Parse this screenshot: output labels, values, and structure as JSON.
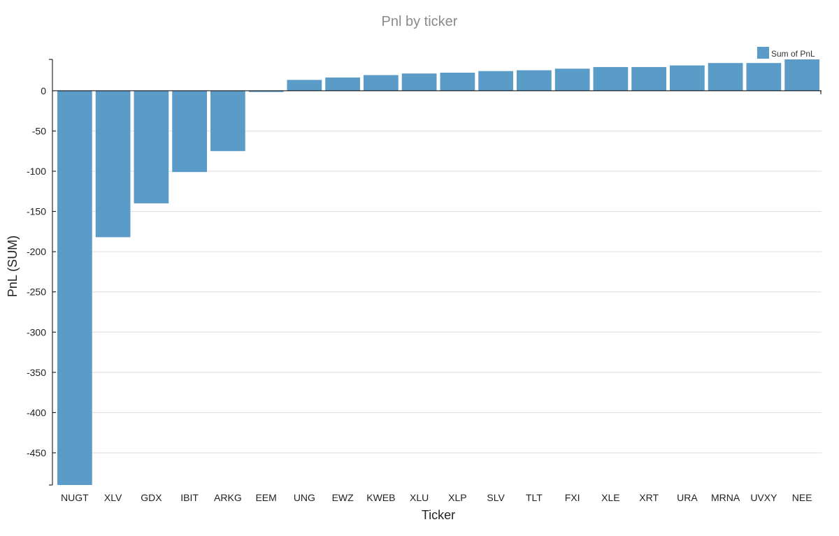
{
  "chart_data": {
    "type": "bar",
    "title": "Pnl by ticker",
    "xlabel": "Ticker",
    "ylabel": "PnL (SUM)",
    "ylim": [
      -490,
      39
    ],
    "yticks": [
      0,
      -50,
      -100,
      -150,
      -200,
      -250,
      -300,
      -350,
      -400,
      -450
    ],
    "grid": true,
    "legend_position": "top-right",
    "categories": [
      "NUGT",
      "XLV",
      "GDX",
      "IBIT",
      "ARKG",
      "EEM",
      "UNG",
      "EWZ",
      "KWEB",
      "XLU",
      "XLP",
      "SLV",
      "TLT",
      "FXI",
      "XLE",
      "XRT",
      "URA",
      "MRNA",
      "UVXY",
      "NEE"
    ],
    "series": [
      {
        "name": "Sum of PnL",
        "color": "#5b9bc8",
        "values": [
          -490,
          -182,
          -140,
          -101,
          -75,
          -1.5,
          13.5,
          16.5,
          19.5,
          21.5,
          22.5,
          24.5,
          25.5,
          27.5,
          29.5,
          29.5,
          31.5,
          34.5,
          34.5,
          39
        ]
      }
    ]
  }
}
